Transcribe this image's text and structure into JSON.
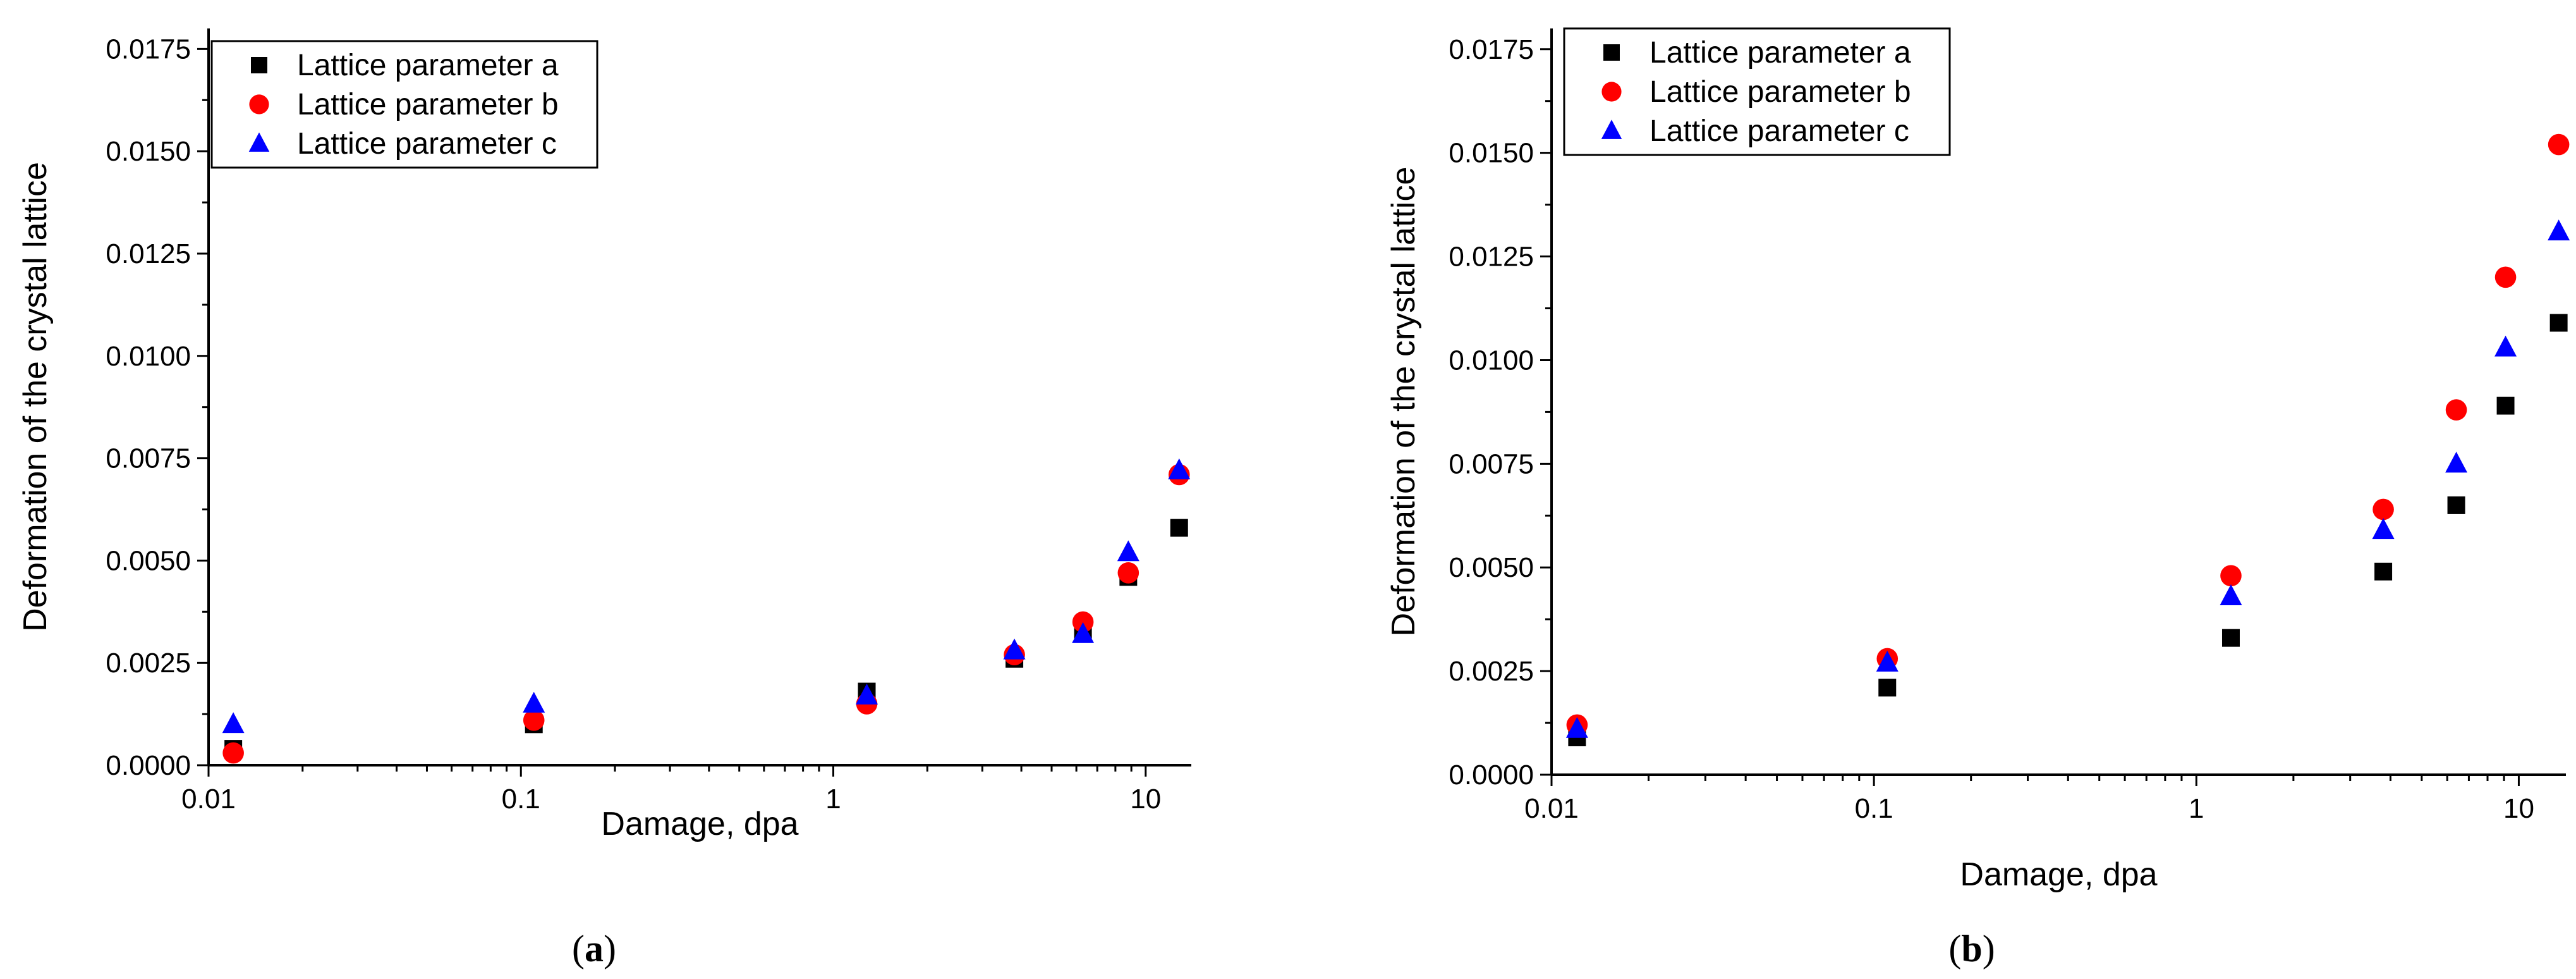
{
  "chart_data": [
    {
      "type": "scatter",
      "caption_letter": "a",
      "xlabel": "Damage, dpa",
      "ylabel": "Deformation of the crystal lattice",
      "x_scale": "log",
      "xlim": [
        0.01,
        14
      ],
      "ylim": [
        0,
        0.018
      ],
      "x_ticks": [
        {
          "value": 0.01,
          "label": "0.01"
        },
        {
          "value": 0.1,
          "label": "0.1"
        },
        {
          "value": 1,
          "label": "1"
        },
        {
          "value": 10,
          "label": "10"
        }
      ],
      "y_ticks": [
        {
          "value": 0,
          "label": "0.0000"
        },
        {
          "value": 0.0025,
          "label": "0.0025"
        },
        {
          "value": 0.005,
          "label": "0.0050"
        },
        {
          "value": 0.0075,
          "label": "0.0075"
        },
        {
          "value": 0.01,
          "label": "0.0100"
        },
        {
          "value": 0.0125,
          "label": "0.0125"
        },
        {
          "value": 0.015,
          "label": "0.0150"
        },
        {
          "value": 0.0175,
          "label": "0.0175"
        }
      ],
      "grid": false,
      "legend_position": "top-left",
      "series": [
        {
          "name": "Lattice parameter a",
          "marker": "square",
          "color": "#000000",
          "x": [
            0.012,
            0.11,
            1.28,
            3.8,
            6.3,
            8.8,
            12.8
          ],
          "y": [
            0.0004,
            0.001,
            0.0018,
            0.0026,
            0.0033,
            0.0046,
            0.0058
          ]
        },
        {
          "name": "Lattice parameter b",
          "marker": "circle",
          "color": "#ff0000",
          "x": [
            0.012,
            0.11,
            1.28,
            3.8,
            6.3,
            8.8,
            12.8
          ],
          "y": [
            0.0003,
            0.0011,
            0.0015,
            0.0027,
            0.0035,
            0.0047,
            0.0071
          ]
        },
        {
          "name": "Lattice parameter c",
          "marker": "triangle",
          "color": "#0000ff",
          "x": [
            0.012,
            0.11,
            1.28,
            3.8,
            6.3,
            8.8,
            12.8
          ],
          "y": [
            0.001,
            0.0015,
            0.0017,
            0.0028,
            0.0032,
            0.0052,
            0.0072
          ]
        }
      ]
    },
    {
      "type": "scatter",
      "caption_letter": "b",
      "xlabel": "Damage, dpa",
      "ylabel": "Deformation of the crystal lattice",
      "x_scale": "log",
      "xlim": [
        0.01,
        14
      ],
      "ylim": [
        0,
        0.018
      ],
      "x_ticks": [
        {
          "value": 0.01,
          "label": "0.01"
        },
        {
          "value": 0.1,
          "label": "0.1"
        },
        {
          "value": 1,
          "label": "1"
        },
        {
          "value": 10,
          "label": "10"
        }
      ],
      "y_ticks": [
        {
          "value": 0,
          "label": "0.0000"
        },
        {
          "value": 0.0025,
          "label": "0.0025"
        },
        {
          "value": 0.005,
          "label": "0.0050"
        },
        {
          "value": 0.0075,
          "label": "0.0075"
        },
        {
          "value": 0.01,
          "label": "0.0100"
        },
        {
          "value": 0.0125,
          "label": "0.0125"
        },
        {
          "value": 0.015,
          "label": "0.0150"
        },
        {
          "value": 0.0175,
          "label": "0.0175"
        }
      ],
      "grid": false,
      "legend_position": "top-left",
      "series": [
        {
          "name": "Lattice parameter a",
          "marker": "square",
          "color": "#000000",
          "x": [
            0.012,
            0.11,
            1.28,
            3.8,
            6.4,
            9.1,
            13.3
          ],
          "y": [
            0.0009,
            0.0021,
            0.0033,
            0.0049,
            0.0065,
            0.0089,
            0.0109
          ]
        },
        {
          "name": "Lattice parameter b",
          "marker": "circle",
          "color": "#ff0000",
          "x": [
            0.012,
            0.11,
            1.28,
            3.8,
            6.4,
            9.1,
            13.3
          ],
          "y": [
            0.0012,
            0.0028,
            0.0048,
            0.0064,
            0.0088,
            0.012,
            0.0152
          ]
        },
        {
          "name": "Lattice parameter c",
          "marker": "triangle",
          "color": "#0000ff",
          "x": [
            0.012,
            0.11,
            1.28,
            3.8,
            6.4,
            9.1,
            13.3
          ],
          "y": [
            0.0011,
            0.0027,
            0.0043,
            0.0059,
            0.0075,
            0.0103,
            0.0131
          ]
        }
      ]
    }
  ]
}
